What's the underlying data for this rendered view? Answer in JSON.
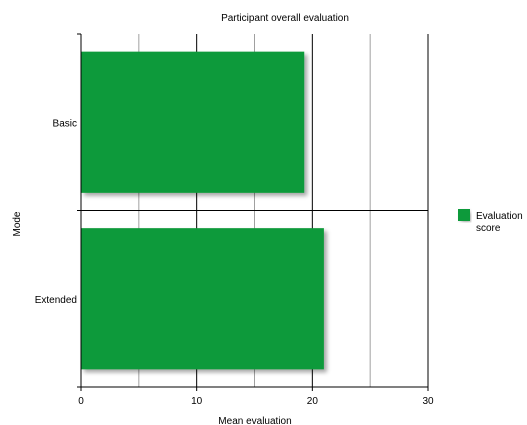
{
  "chart_data": {
    "type": "bar",
    "orientation": "horizontal",
    "title": "Participant overall evaluation",
    "xlabel": "Mean evaluation",
    "ylabel": "Mode",
    "categories": [
      "Basic",
      "Extended"
    ],
    "series": [
      {
        "name": "Evaluation score",
        "values": [
          19.3,
          21.0
        ],
        "color": "#0a9a3a"
      }
    ],
    "xlim": [
      0,
      30
    ],
    "x_ticks": [
      0,
      10,
      20,
      30
    ],
    "x_minor_ticks": [
      5,
      15,
      25
    ],
    "grid": true,
    "legend_position": "right"
  }
}
